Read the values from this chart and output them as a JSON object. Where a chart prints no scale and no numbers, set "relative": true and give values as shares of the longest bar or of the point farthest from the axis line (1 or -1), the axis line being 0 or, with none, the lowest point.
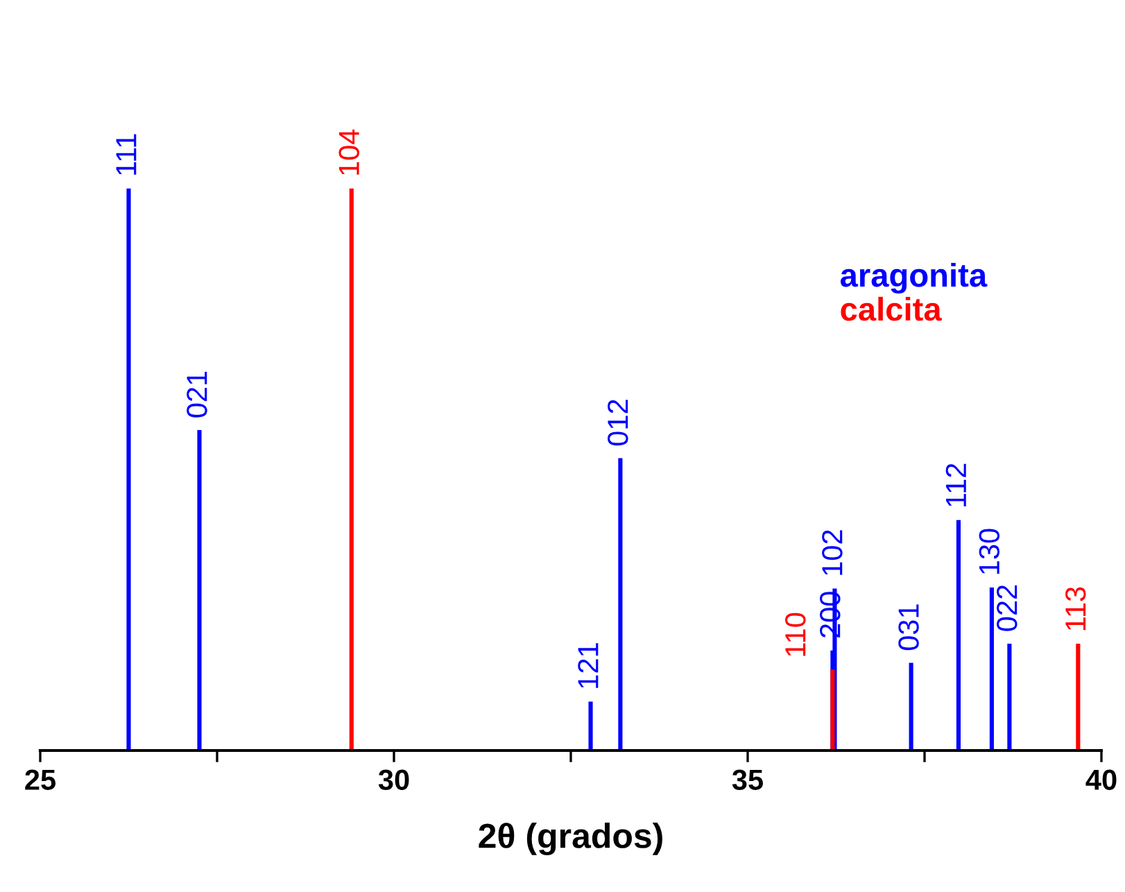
{
  "chart_data": {
    "type": "bar",
    "relative": true,
    "xlabel": "2θ (grados)",
    "xlim": [
      25,
      40
    ],
    "xticks": [
      25,
      {
        "value": 27.5,
        "label": null
      },
      30,
      {
        "value": 32.5,
        "label": null
      },
      35,
      {
        "value": 37.5,
        "label": null
      },
      40
    ],
    "tick_labels": "x",
    "grid": false,
    "legend": "top right",
    "series": [
      {
        "name": "aragonita",
        "color": "#0000ff",
        "x": [
          26.25,
          27.25,
          32.78,
          33.2,
          36.2,
          36.23,
          37.31,
          37.98,
          38.45,
          38.7
        ],
        "values": [
          1.0,
          0.57,
          0.087,
          0.52,
          0.178,
          0.288,
          0.156,
          0.41,
          0.29,
          0.19
        ]
      },
      {
        "name": "calcita",
        "color": "#ff0000",
        "x": [
          29.4,
          36.2,
          39.67
        ],
        "values": [
          1.0,
          0.144,
          0.19
        ]
      }
    ],
    "annotations": [
      {
        "text": "111",
        "x": 26.25,
        "y": 1.0
      },
      {
        "text": "021",
        "x": 27.25,
        "y": 0.57
      },
      {
        "text": "121",
        "x": 32.78,
        "y": 0.087
      },
      {
        "text": "012",
        "x": 33.2,
        "y": 0.52
      },
      {
        "text": "200",
        "x": 36.2,
        "y": 0.178
      },
      {
        "text": "102",
        "x": 36.23,
        "y": 0.288
      },
      {
        "text": "031",
        "x": 37.31,
        "y": 0.156
      },
      {
        "text": "112",
        "x": 37.98,
        "y": 0.41
      },
      {
        "text": "130",
        "x": 38.45,
        "y": 0.29
      },
      {
        "text": "022",
        "x": 38.7,
        "y": 0.19
      },
      {
        "text": "104",
        "x": 29.4,
        "y": 1.0
      },
      {
        "text": "110",
        "x": 36.2,
        "y": 0.144
      },
      {
        "text": "113",
        "x": 39.67,
        "y": 0.19
      }
    ]
  }
}
